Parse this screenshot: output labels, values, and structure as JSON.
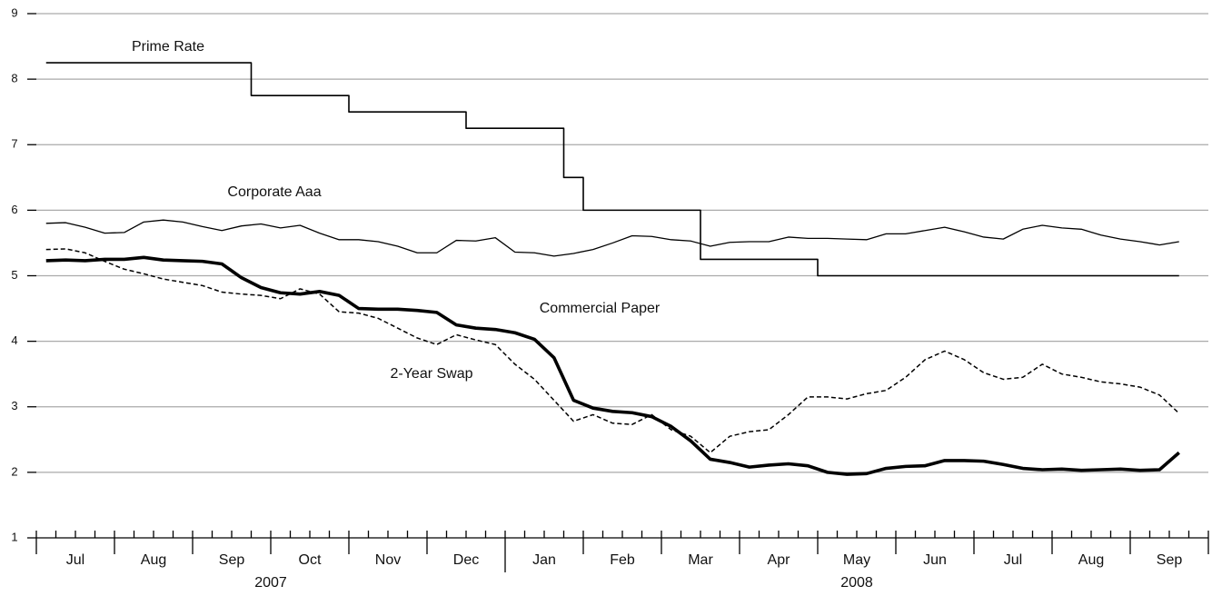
{
  "chart_data": {
    "type": "line",
    "months": [
      "Jul",
      "Aug",
      "Sep",
      "Oct",
      "Nov",
      "Dec",
      "Jan",
      "Feb",
      "Mar",
      "Apr",
      "May",
      "Jun",
      "Jul",
      "Aug",
      "Sep"
    ],
    "years": [
      "2007",
      "2008"
    ],
    "x": [
      "2007-07",
      "2007-07",
      "2007-07",
      "2007-07",
      "2007-08",
      "2007-08",
      "2007-08",
      "2007-08",
      "2007-09",
      "2007-09",
      "2007-09",
      "2007-09",
      "2007-10",
      "2007-10",
      "2007-10",
      "2007-10",
      "2007-11",
      "2007-11",
      "2007-11",
      "2007-11",
      "2007-12",
      "2007-12",
      "2007-12",
      "2007-12",
      "2008-01",
      "2008-01",
      "2008-01",
      "2008-01",
      "2008-02",
      "2008-02",
      "2008-02",
      "2008-02",
      "2008-03",
      "2008-03",
      "2008-03",
      "2008-03",
      "2008-04",
      "2008-04",
      "2008-04",
      "2008-04",
      "2008-05",
      "2008-05",
      "2008-05",
      "2008-05",
      "2008-06",
      "2008-06",
      "2008-06",
      "2008-06",
      "2008-07",
      "2008-07",
      "2008-07",
      "2008-07",
      "2008-08",
      "2008-08",
      "2008-08",
      "2008-08",
      "2008-09",
      "2008-09",
      "2008-09"
    ],
    "ylim": [
      1,
      9
    ],
    "yticks": [
      1,
      2,
      3,
      4,
      5,
      6,
      7,
      8,
      9
    ],
    "grid": true,
    "series": [
      {
        "name": "Prime Rate",
        "color": "#000000",
        "linewidth": 1.6,
        "dashed": false,
        "steps": true,
        "values": [
          8.25,
          8.25,
          8.25,
          8.25,
          8.25,
          8.25,
          8.25,
          8.25,
          8.25,
          8.25,
          8.25,
          7.75,
          7.75,
          7.75,
          7.75,
          7.75,
          7.5,
          7.5,
          7.5,
          7.5,
          7.5,
          7.5,
          7.25,
          7.25,
          7.25,
          7.25,
          7.25,
          6.5,
          6.0,
          6.0,
          6.0,
          6.0,
          6.0,
          6.0,
          5.25,
          5.25,
          5.25,
          5.25,
          5.25,
          5.25,
          5.0,
          5.0,
          5.0,
          5.0,
          5.0,
          5.0,
          5.0,
          5.0,
          5.0,
          5.0,
          5.0,
          5.0,
          5.0,
          5.0,
          5.0,
          5.0,
          5.0,
          5.0,
          5.0
        ]
      },
      {
        "name": "Corporate Aaa",
        "color": "#000000",
        "linewidth": 1.3,
        "dashed": false,
        "steps": false,
        "values": [
          5.8,
          5.81,
          5.74,
          5.65,
          5.66,
          5.82,
          5.85,
          5.82,
          5.75,
          5.69,
          5.76,
          5.79,
          5.73,
          5.77,
          5.65,
          5.55,
          5.55,
          5.52,
          5.45,
          5.35,
          5.35,
          5.54,
          5.53,
          5.58,
          5.36,
          5.35,
          5.3,
          5.34,
          5.4,
          5.5,
          5.61,
          5.6,
          5.55,
          5.53,
          5.45,
          5.51,
          5.52,
          5.52,
          5.59,
          5.57,
          5.57,
          5.56,
          5.55,
          5.64,
          5.64,
          5.69,
          5.74,
          5.67,
          5.59,
          5.56,
          5.71,
          5.77,
          5.73,
          5.71,
          5.62,
          5.56,
          5.52,
          5.47,
          5.52
        ]
      },
      {
        "name": "Commercial Paper",
        "color": "#000000",
        "linewidth": 3.6,
        "dashed": false,
        "steps": false,
        "values": [
          5.23,
          5.24,
          5.23,
          5.25,
          5.25,
          5.28,
          5.24,
          5.23,
          5.22,
          5.18,
          4.97,
          4.82,
          4.74,
          4.72,
          4.76,
          4.7,
          4.5,
          4.49,
          4.49,
          4.47,
          4.44,
          4.25,
          4.2,
          4.18,
          4.13,
          4.03,
          3.75,
          3.1,
          2.98,
          2.93,
          2.91,
          2.85,
          2.7,
          2.48,
          2.2,
          2.15,
          2.08,
          2.11,
          2.13,
          2.1,
          2.0,
          1.97,
          1.98,
          2.06,
          2.09,
          2.1,
          2.18,
          2.18,
          2.17,
          2.12,
          2.06,
          2.04,
          2.05,
          2.03,
          2.04,
          2.05,
          2.03,
          2.04,
          2.3
        ]
      },
      {
        "name": "2-Year Swap",
        "color": "#000000",
        "linewidth": 1.5,
        "dashed": true,
        "steps": false,
        "values": [
          5.4,
          5.41,
          5.35,
          5.22,
          5.1,
          5.03,
          4.95,
          4.9,
          4.85,
          4.75,
          4.72,
          4.7,
          4.65,
          4.8,
          4.72,
          4.45,
          4.43,
          4.35,
          4.2,
          4.05,
          3.95,
          4.1,
          4.02,
          3.95,
          3.65,
          3.42,
          3.1,
          2.78,
          2.88,
          2.75,
          2.73,
          2.88,
          2.65,
          2.55,
          2.3,
          2.55,
          2.62,
          2.65,
          2.88,
          3.15,
          3.15,
          3.12,
          3.2,
          3.25,
          3.45,
          3.72,
          3.85,
          3.72,
          3.52,
          3.42,
          3.45,
          3.65,
          3.5,
          3.45,
          3.38,
          3.35,
          3.3,
          3.18,
          2.9
        ]
      }
    ]
  }
}
